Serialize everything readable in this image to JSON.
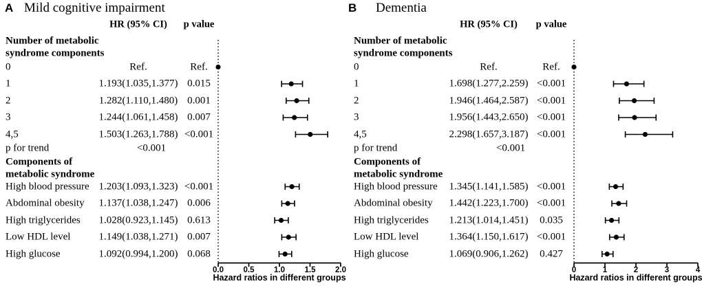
{
  "figure": {
    "panels": [
      {
        "letter": "A",
        "title": "Mild cognitive impairment",
        "col_headers": {
          "hr": "HR (95% CI)",
          "p": "p value"
        },
        "axis": {
          "label": "Hazard ratios in different groups",
          "ticks": [
            "0.0",
            "0.5",
            "1.0",
            "1.5",
            "2.0"
          ],
          "tick_values": [
            0,
            0.5,
            1,
            1.5,
            2
          ],
          "min": 0,
          "max": 2
        },
        "rows": [
          {
            "kind": "section",
            "label": "Number of metabolic"
          },
          {
            "kind": "section",
            "label": "syndrome components"
          },
          {
            "kind": "data",
            "label": "0",
            "hr_text": "Ref.",
            "p_text": "Ref.",
            "ref": true,
            "est": 0
          },
          {
            "kind": "data",
            "label": "1",
            "hr_text": "1.193(1.035,1.377)",
            "p_text": "0.015",
            "est": 1.193,
            "lo": 1.035,
            "hi": 1.377
          },
          {
            "kind": "data",
            "label": "2",
            "hr_text": "1.282(1.110,1.480)",
            "p_text": "0.001",
            "est": 1.282,
            "lo": 1.11,
            "hi": 1.48
          },
          {
            "kind": "data",
            "label": "3",
            "hr_text": "1.244(1.061,1.458)",
            "p_text": "0.007",
            "est": 1.244,
            "lo": 1.061,
            "hi": 1.458
          },
          {
            "kind": "data",
            "label": "4,5",
            "hr_text": "1.503(1.263,1.788)",
            "p_text": "<0.001",
            "est": 1.503,
            "lo": 1.263,
            "hi": 1.788
          },
          {
            "kind": "trend",
            "label": "p for trend",
            "hr_text": "<0.001"
          },
          {
            "kind": "section",
            "label": "Components of"
          },
          {
            "kind": "section",
            "label": "metabolic syndrome"
          },
          {
            "kind": "data",
            "label": "High blood pressure",
            "hr_text": "1.203(1.093,1.323)",
            "p_text": "<0.001",
            "est": 1.203,
            "lo": 1.093,
            "hi": 1.323
          },
          {
            "kind": "data",
            "label": "Abdominal obesity",
            "hr_text": "1.137(1.038,1.247)",
            "p_text": "0.006",
            "est": 1.137,
            "lo": 1.038,
            "hi": 1.247
          },
          {
            "kind": "data",
            "label": "High triglycerides",
            "hr_text": "1.028(0.923,1.145)",
            "p_text": "0.613",
            "est": 1.028,
            "lo": 0.923,
            "hi": 1.145
          },
          {
            "kind": "data",
            "label": "Low HDL level",
            "hr_text": "1.149(1.038,1.271)",
            "p_text": "0.007",
            "est": 1.149,
            "lo": 1.038,
            "hi": 1.271
          },
          {
            "kind": "data",
            "label": "High glucose",
            "hr_text": "1.092(0.994,1.200)",
            "p_text": "0.068",
            "est": 1.092,
            "lo": 0.994,
            "hi": 1.2
          }
        ]
      },
      {
        "letter": "B",
        "title": "Dementia",
        "col_headers": {
          "hr": "HR (95% CI)",
          "p": "p value"
        },
        "axis": {
          "label": "Hazard ratios in different groups",
          "ticks": [
            "0",
            "1",
            "2",
            "3",
            "4"
          ],
          "tick_values": [
            0,
            1,
            2,
            3,
            4
          ],
          "min": 0,
          "max": 4
        },
        "rows": [
          {
            "kind": "section",
            "label": "Number of metabolic"
          },
          {
            "kind": "section",
            "label": "syndrome components"
          },
          {
            "kind": "data",
            "label": "0",
            "hr_text": "Ref.",
            "p_text": "Ref.",
            "ref": true,
            "est": 0
          },
          {
            "kind": "data",
            "label": "1",
            "hr_text": "1.698(1.277,2.259)",
            "p_text": "<0.001",
            "est": 1.698,
            "lo": 1.277,
            "hi": 2.259
          },
          {
            "kind": "data",
            "label": "2",
            "hr_text": "1.946(1.464,2.587)",
            "p_text": "<0.001",
            "est": 1.946,
            "lo": 1.464,
            "hi": 2.587
          },
          {
            "kind": "data",
            "label": "3",
            "hr_text": "1.956(1.443,2.650)",
            "p_text": "<0.001",
            "est": 1.956,
            "lo": 1.443,
            "hi": 2.65
          },
          {
            "kind": "data",
            "label": "4,5",
            "hr_text": "2.298(1.657,3.187)",
            "p_text": "<0.001",
            "est": 2.298,
            "lo": 1.657,
            "hi": 3.187
          },
          {
            "kind": "trend",
            "label": "p for trend",
            "hr_text": "<0.001"
          },
          {
            "kind": "section",
            "label": "Components of"
          },
          {
            "kind": "section",
            "label": "metabolic syndrome"
          },
          {
            "kind": "data",
            "label": "High blood pressure",
            "hr_text": "1.345(1.141,1.585)",
            "p_text": "<0.001",
            "est": 1.345,
            "lo": 1.141,
            "hi": 1.585
          },
          {
            "kind": "data",
            "label": "Abdominal obesity",
            "hr_text": "1.442(1.223,1.700)",
            "p_text": "<0.001",
            "est": 1.442,
            "lo": 1.223,
            "hi": 1.7
          },
          {
            "kind": "data",
            "label": "High triglycerides",
            "hr_text": "1.213(1.014,1.451)",
            "p_text": "0.035",
            "est": 1.213,
            "lo": 1.014,
            "hi": 1.451
          },
          {
            "kind": "data",
            "label": "Low HDL level",
            "hr_text": "1.364(1.150,1.617)",
            "p_text": "<0.001",
            "est": 1.364,
            "lo": 1.15,
            "hi": 1.617
          },
          {
            "kind": "data",
            "label": "High glucose",
            "hr_text": "1.069(0.906,1.262)",
            "p_text": "0.427",
            "est": 1.069,
            "lo": 0.906,
            "hi": 1.262
          }
        ]
      }
    ],
    "colors": {
      "ink": "#000000",
      "background": "#ffffff"
    }
  },
  "chart_data": [
    {
      "type": "scatter",
      "subtype": "forest-plot",
      "panel": "A",
      "title": "Mild cognitive impairment",
      "xlabel": "Hazard ratios in different groups",
      "xlim": [
        0,
        2
      ],
      "xticks": [
        0,
        0.5,
        1.0,
        1.5,
        2.0
      ],
      "reference_marker_x": 0,
      "groups": [
        {
          "name": "Number of metabolic syndrome components",
          "items": [
            {
              "label": "0",
              "hr": null,
              "ci": null,
              "p": "Ref.",
              "reference": true
            },
            {
              "label": "1",
              "hr": 1.193,
              "ci": [
                1.035,
                1.377
              ],
              "p": "0.015"
            },
            {
              "label": "2",
              "hr": 1.282,
              "ci": [
                1.11,
                1.48
              ],
              "p": "0.001"
            },
            {
              "label": "3",
              "hr": 1.244,
              "ci": [
                1.061,
                1.458
              ],
              "p": "0.007"
            },
            {
              "label": "4,5",
              "hr": 1.503,
              "ci": [
                1.263,
                1.788
              ],
              "p": "<0.001"
            }
          ],
          "p_for_trend": "<0.001"
        },
        {
          "name": "Components of metabolic syndrome",
          "items": [
            {
              "label": "High blood pressure",
              "hr": 1.203,
              "ci": [
                1.093,
                1.323
              ],
              "p": "<0.001"
            },
            {
              "label": "Abdominal obesity",
              "hr": 1.137,
              "ci": [
                1.038,
                1.247
              ],
              "p": "0.006"
            },
            {
              "label": "High triglycerides",
              "hr": 1.028,
              "ci": [
                0.923,
                1.145
              ],
              "p": "0.613"
            },
            {
              "label": "Low HDL level",
              "hr": 1.149,
              "ci": [
                1.038,
                1.271
              ],
              "p": "0.007"
            },
            {
              "label": "High glucose",
              "hr": 1.092,
              "ci": [
                0.994,
                1.2
              ],
              "p": "0.068"
            }
          ]
        }
      ]
    },
    {
      "type": "scatter",
      "subtype": "forest-plot",
      "panel": "B",
      "title": "Dementia",
      "xlabel": "Hazard ratios in different groups",
      "xlim": [
        0,
        4
      ],
      "xticks": [
        0,
        1,
        2,
        3,
        4
      ],
      "reference_marker_x": 0,
      "groups": [
        {
          "name": "Number of metabolic syndrome components",
          "items": [
            {
              "label": "0",
              "hr": null,
              "ci": null,
              "p": "Ref.",
              "reference": true
            },
            {
              "label": "1",
              "hr": 1.698,
              "ci": [
                1.277,
                2.259
              ],
              "p": "<0.001"
            },
            {
              "label": "2",
              "hr": 1.946,
              "ci": [
                1.464,
                2.587
              ],
              "p": "<0.001"
            },
            {
              "label": "3",
              "hr": 1.956,
              "ci": [
                1.443,
                2.65
              ],
              "p": "<0.001"
            },
            {
              "label": "4,5",
              "hr": 2.298,
              "ci": [
                1.657,
                3.187
              ],
              "p": "<0.001"
            }
          ],
          "p_for_trend": "<0.001"
        },
        {
          "name": "Components of metabolic syndrome",
          "items": [
            {
              "label": "High blood pressure",
              "hr": 1.345,
              "ci": [
                1.141,
                1.585
              ],
              "p": "<0.001"
            },
            {
              "label": "Abdominal obesity",
              "hr": 1.442,
              "ci": [
                1.223,
                1.7
              ],
              "p": "<0.001"
            },
            {
              "label": "High triglycerides",
              "hr": 1.213,
              "ci": [
                1.014,
                1.451
              ],
              "p": "0.035"
            },
            {
              "label": "Low HDL level",
              "hr": 1.364,
              "ci": [
                1.15,
                1.617
              ],
              "p": "<0.001"
            },
            {
              "label": "High glucose",
              "hr": 1.069,
              "ci": [
                0.906,
                1.262
              ],
              "p": "0.427"
            }
          ]
        }
      ]
    }
  ]
}
